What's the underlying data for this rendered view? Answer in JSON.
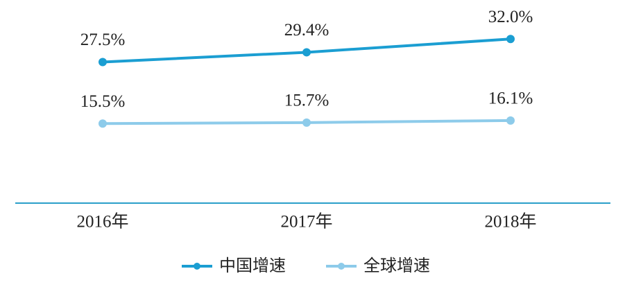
{
  "chart_data": {
    "type": "line",
    "categories": [
      "2016年",
      "2017年",
      "2018年"
    ],
    "series": [
      {
        "name": "中国增速",
        "color": "#1b9ed2",
        "values": [
          27.5,
          29.4,
          32.0
        ],
        "value_labels": [
          "27.5%",
          "29.4%",
          "32.0%"
        ]
      },
      {
        "name": "全球增速",
        "color": "#8dcbea",
        "values": [
          15.5,
          15.7,
          16.1
        ],
        "value_labels": [
          "15.5%",
          "15.7%",
          "16.1%"
        ]
      }
    ],
    "legend": "bottom"
  }
}
